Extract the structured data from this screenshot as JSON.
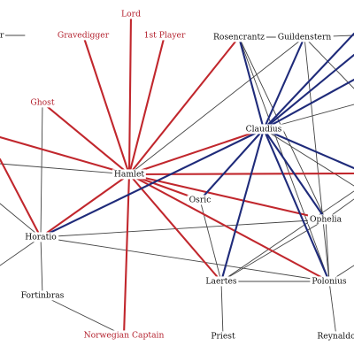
{
  "colors": {
    "red": "#c1272d",
    "blue": "#1f2b7a",
    "black": "#444444",
    "red_text": "#b3202d",
    "black_text": "#111111"
  },
  "nodes": [
    {
      "id": "r_edge",
      "label": "r",
      "color": "black"
    },
    {
      "id": "gravedigger",
      "label": "Gravedigger",
      "color": "red"
    },
    {
      "id": "lord",
      "label": "Lord",
      "color": "red"
    },
    {
      "id": "first_player",
      "label": "1st Player",
      "color": "red"
    },
    {
      "id": "rosencrantz",
      "label": "Rosencrantz",
      "color": "black"
    },
    {
      "id": "guildenstern",
      "label": "Guildenstern",
      "color": "black"
    },
    {
      "id": "ghost",
      "label": "Ghost",
      "color": "red"
    },
    {
      "id": "claudius",
      "label": "Claudius",
      "color": "black"
    },
    {
      "id": "hamlet",
      "label": "Hamlet",
      "color": "black"
    },
    {
      "id": "osric",
      "label": "Osric",
      "color": "black"
    },
    {
      "id": "horatio",
      "label": "Horatio",
      "color": "black"
    },
    {
      "id": "ophelia",
      "label": "Ophelia",
      "color": "black"
    },
    {
      "id": "laertes",
      "label": "Laertes",
      "color": "black"
    },
    {
      "id": "polonius",
      "label": "Polonius",
      "color": "black"
    },
    {
      "id": "fortinbras",
      "label": "Fortinbras",
      "color": "black"
    },
    {
      "id": "norwegian_captain",
      "label": "Norwegian Captain",
      "color": "red"
    },
    {
      "id": "priest",
      "label": "Priest",
      "color": "black"
    },
    {
      "id": "reynaldo",
      "label": "Reynaldo",
      "color": "black"
    }
  ],
  "edges": [
    [
      "hamlet",
      "lord",
      "red"
    ],
    [
      "hamlet",
      "gravedigger",
      "red"
    ],
    [
      "hamlet",
      "first_player",
      "red"
    ],
    [
      "hamlet",
      "ghost",
      "red"
    ],
    [
      "hamlet",
      "rosencrantz",
      "red"
    ],
    [
      "hamlet",
      "claudius",
      "red"
    ],
    [
      "hamlet",
      "horatio",
      "red"
    ],
    [
      "hamlet",
      "osric",
      "red"
    ],
    [
      "hamlet",
      "ophelia",
      "red"
    ],
    [
      "hamlet",
      "laertes",
      "red"
    ],
    [
      "hamlet",
      "polonius",
      "red"
    ],
    [
      "hamlet",
      "norwegian_captain",
      "red"
    ],
    [
      "hamlet",
      "offscreen_left_1",
      "red"
    ],
    [
      "hamlet",
      "offscreen_right_1",
      "red"
    ],
    [
      "hamlet",
      "offscreen_left_2",
      "black"
    ],
    [
      "hamlet",
      "guildenstern",
      "black"
    ],
    [
      "horatio",
      "offscreen_left_3",
      "red"
    ],
    [
      "claudius",
      "rosencrantz",
      "blue"
    ],
    [
      "claudius",
      "guildenstern",
      "blue"
    ],
    [
      "claudius",
      "horatio",
      "blue"
    ],
    [
      "claudius",
      "laertes",
      "blue"
    ],
    [
      "claudius",
      "polonius",
      "blue"
    ],
    [
      "claudius",
      "osric",
      "blue"
    ],
    [
      "claudius",
      "ophelia",
      "blue"
    ],
    [
      "claudius",
      "offscreen_right_2",
      "blue"
    ],
    [
      "claudius",
      "offscreen_right_3",
      "blue"
    ],
    [
      "claudius",
      "offscreen_right_4",
      "blue"
    ],
    [
      "claudius",
      "offscreen_right_5",
      "blue"
    ],
    [
      "rosencrantz",
      "guildenstern",
      "black"
    ],
    [
      "rosencrantz",
      "polonius",
      "black"
    ],
    [
      "rosencrantz",
      "ophelia",
      "black"
    ],
    [
      "guildenstern",
      "polonius",
      "black"
    ],
    [
      "guildenstern",
      "offscreen_right_6",
      "black"
    ],
    [
      "guildenstern",
      "offscreen_right_7",
      "black"
    ],
    [
      "claudius",
      "offscreen_right_8",
      "black"
    ],
    [
      "claudius",
      "offscreen_right_9",
      "black"
    ],
    [
      "horatio",
      "ophelia",
      "black"
    ],
    [
      "horatio",
      "polonius",
      "black"
    ],
    [
      "horatio",
      "fortinbras",
      "black"
    ],
    [
      "horatio",
      "ghost",
      "black"
    ],
    [
      "horatio",
      "offscreen_left_4",
      "black"
    ],
    [
      "horatio",
      "offscreen_left_5",
      "black"
    ],
    [
      "fortinbras",
      "norwegian_captain",
      "black"
    ],
    [
      "laertes",
      "ophelia",
      "black"
    ],
    [
      "laertes",
      "polonius",
      "black"
    ],
    [
      "laertes",
      "priest",
      "black"
    ],
    [
      "laertes",
      "osric",
      "black"
    ],
    [
      "laertes",
      "offscreen_right_10",
      "black"
    ],
    [
      "ophelia",
      "offscreen_right_11",
      "black"
    ],
    [
      "polonius",
      "reynaldo",
      "black"
    ],
    [
      "polonius",
      "ophelia",
      "black"
    ],
    [
      "polonius",
      "offscreen_right_12",
      "black"
    ],
    [
      "r_edge",
      "offscreen_left_6",
      "black"
    ]
  ]
}
